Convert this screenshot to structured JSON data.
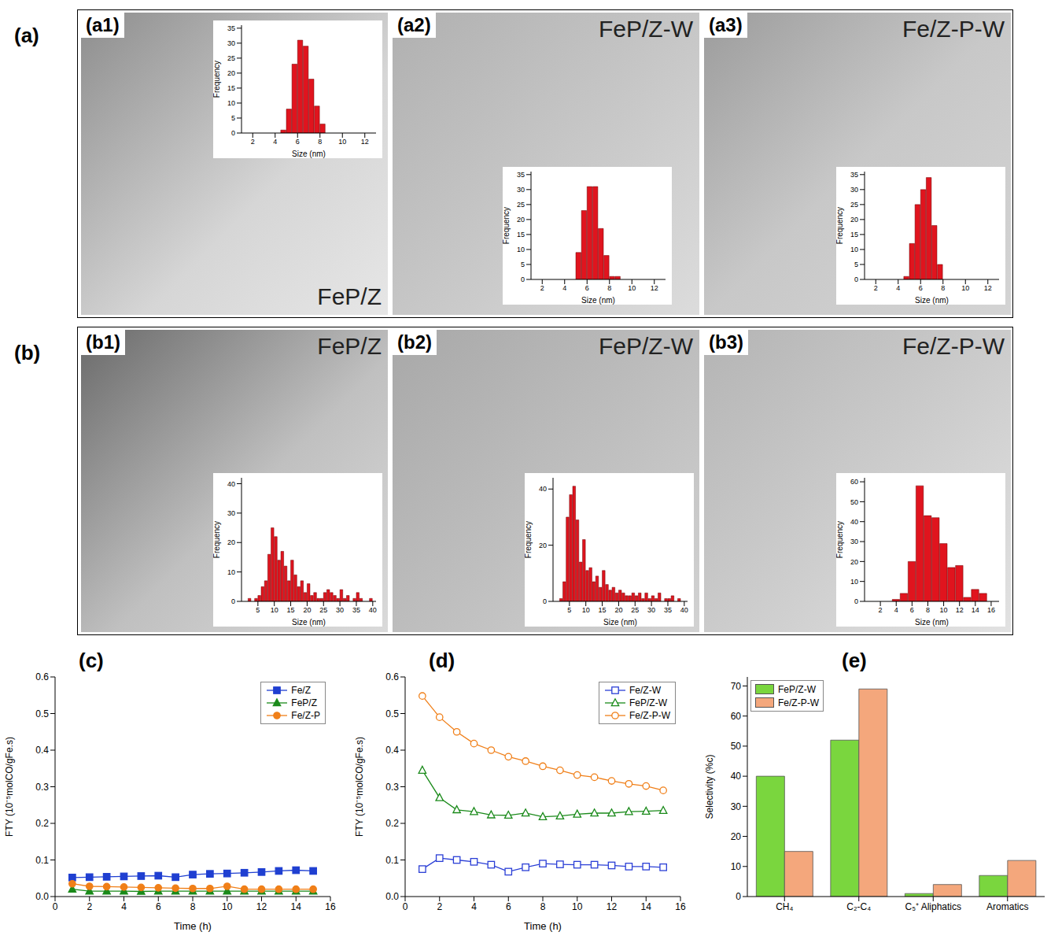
{
  "groups": [
    "(a)",
    "(b)"
  ],
  "chart_data": [
    {
      "type": "histogram",
      "title": "FeP/Z",
      "annotations": [
        "(a1)"
      ],
      "xlabel": "Size (nm)",
      "ylabel": "Frequency",
      "bins": [
        4.5,
        5,
        5.5,
        6,
        6.5,
        7,
        7.5,
        8,
        8.5
      ],
      "values": [
        1,
        8,
        23,
        31,
        29,
        18,
        9,
        3
      ],
      "color": "#e0141e",
      "xlim": [
        1,
        13
      ],
      "xticks": [
        2,
        4,
        6,
        8,
        10,
        12
      ],
      "ylim": [
        0,
        36
      ],
      "yticks": [
        0,
        5,
        10,
        15,
        20,
        25,
        30,
        35
      ]
    },
    {
      "type": "histogram",
      "title": "FeP/Z-W",
      "annotations": [
        "(a2)"
      ],
      "xlabel": "Size (nm)",
      "ylabel": "Frequency",
      "bins": [
        5,
        5.5,
        6,
        6.5,
        7,
        7.5,
        8,
        8.5,
        9
      ],
      "values": [
        9,
        23,
        31,
        31,
        17,
        8,
        1,
        1
      ],
      "color": "#e0141e",
      "xlim": [
        1,
        13
      ],
      "xticks": [
        2,
        4,
        6,
        8,
        10,
        12
      ],
      "ylim": [
        0,
        36
      ],
      "yticks": [
        0,
        5,
        10,
        15,
        20,
        25,
        30,
        35
      ]
    },
    {
      "type": "histogram",
      "title": "Fe/Z-P-W",
      "annotations": [
        "(a3)"
      ],
      "xlabel": "Size (nm)",
      "ylabel": "Frequency",
      "bins": [
        4.5,
        5,
        5.5,
        6,
        6.5,
        7,
        7.5,
        8
      ],
      "values": [
        1,
        12,
        25,
        30,
        34,
        18,
        5
      ],
      "color": "#e0141e",
      "xlim": [
        1,
        13
      ],
      "xticks": [
        2,
        4,
        6,
        8,
        10,
        12
      ],
      "ylim": [
        0,
        36
      ],
      "yticks": [
        0,
        5,
        10,
        15,
        20,
        25,
        30,
        35
      ]
    },
    {
      "type": "histogram",
      "title": "FeP/Z",
      "annotations": [
        "(b1)"
      ],
      "xlabel": "Size (nm)",
      "ylabel": "Frequency",
      "bins": [
        2,
        3,
        4,
        5,
        6,
        7,
        8,
        9,
        10,
        11,
        12,
        13,
        14,
        15,
        16,
        17,
        18,
        19,
        20,
        21,
        22,
        23,
        24,
        25,
        26,
        27,
        28,
        29,
        30,
        31,
        32,
        33,
        34,
        35,
        36,
        37,
        38,
        39,
        40,
        41
      ],
      "values": [
        1,
        0,
        1,
        2,
        5,
        7,
        16,
        25,
        22,
        14,
        17,
        12,
        7,
        14,
        9,
        5,
        7,
        3,
        6,
        2,
        3,
        1,
        1,
        3,
        4,
        3,
        2,
        1,
        4,
        1,
        2,
        0,
        1,
        3,
        1,
        0,
        0,
        1,
        0
      ],
      "color": "#e0141e",
      "xlim": [
        0,
        41
      ],
      "xticks": [
        5,
        10,
        15,
        20,
        25,
        30,
        35,
        40
      ],
      "ylim": [
        0,
        42
      ],
      "yticks": [
        0,
        10,
        20,
        30,
        40
      ]
    },
    {
      "type": "histogram",
      "title": "FeP/Z-W",
      "annotations": [
        "(b2)"
      ],
      "xlabel": "Size (nm)",
      "ylabel": "Frequency",
      "bins": [
        2,
        3,
        4,
        5,
        6,
        7,
        8,
        9,
        10,
        11,
        12,
        13,
        14,
        15,
        16,
        17,
        18,
        19,
        20,
        21,
        22,
        23,
        24,
        25,
        26,
        27,
        28,
        29,
        30,
        31,
        32,
        33,
        34,
        35,
        36,
        37,
        38,
        39,
        40
      ],
      "values": [
        1,
        7,
        30,
        38,
        41,
        29,
        14,
        22,
        11,
        12,
        7,
        9,
        5,
        11,
        6,
        4,
        5,
        3,
        4,
        3,
        2,
        2,
        3,
        2,
        3,
        1,
        3,
        1,
        2,
        1,
        3,
        0,
        1,
        1,
        2,
        0,
        1,
        0
      ],
      "color": "#e0141e",
      "xlim": [
        0,
        41
      ],
      "xticks": [
        5,
        10,
        15,
        20,
        25,
        30,
        35,
        40
      ],
      "ylim": [
        0,
        44
      ],
      "yticks": [
        0,
        20,
        40
      ]
    },
    {
      "type": "histogram",
      "title": "Fe/Z-P-W",
      "annotations": [
        "(b3)"
      ],
      "xlabel": "Size (nm)",
      "ylabel": "Frequency",
      "bins": [
        3.5,
        4.5,
        5.5,
        6.5,
        7.5,
        8.5,
        9.5,
        10.5,
        11.5,
        12.5,
        13.5,
        14.5,
        15.5
      ],
      "values": [
        1,
        4,
        20,
        58,
        43,
        42,
        29,
        17,
        18,
        2,
        6,
        4
      ],
      "color": "#e0141e",
      "xlim": [
        0,
        17
      ],
      "xticks": [
        2,
        4,
        6,
        8,
        10,
        12,
        14,
        16
      ],
      "ylim": [
        0,
        62
      ],
      "yticks": [
        0,
        10,
        20,
        30,
        40,
        50,
        60
      ]
    },
    {
      "type": "line",
      "annotations": [
        "(c)"
      ],
      "xlabel": "Time (h)",
      "ylabel": "FTY (10⁻⁵molCO/gFe.s)",
      "x": [
        1,
        2,
        3,
        4,
        5,
        6,
        7,
        8,
        9,
        10,
        11,
        12,
        13,
        14,
        15
      ],
      "series": [
        {
          "name": "Fe/Z",
          "color": "#1f3fd1",
          "marker": "square",
          "values": [
            0.052,
            0.053,
            0.054,
            0.055,
            0.056,
            0.057,
            0.053,
            0.06,
            0.062,
            0.063,
            0.065,
            0.067,
            0.07,
            0.072,
            0.07
          ]
        },
        {
          "name": "FeP/Z",
          "color": "#1a8a1a",
          "marker": "triangle",
          "values": [
            0.02,
            0.015,
            0.015,
            0.015,
            0.014,
            0.015,
            0.015,
            0.015,
            0.015,
            0.015,
            0.015,
            0.015,
            0.015,
            0.015,
            0.015
          ]
        },
        {
          "name": "Fe/Z-P",
          "color": "#f07f18",
          "marker": "circle",
          "values": [
            0.035,
            0.028,
            0.027,
            0.026,
            0.025,
            0.024,
            0.023,
            0.022,
            0.022,
            0.028,
            0.02,
            0.02,
            0.02,
            0.02,
            0.02
          ]
        }
      ],
      "xlim": [
        0,
        16
      ],
      "xticks": [
        0,
        2,
        4,
        6,
        8,
        10,
        12,
        14,
        16
      ],
      "ylim": [
        0,
        0.6
      ],
      "yticks": [
        {
          "value": 0,
          "label": "0.0"
        },
        0.1,
        0.2,
        0.3,
        0.4,
        0.5,
        0.6
      ],
      "legend": "upper right"
    },
    {
      "type": "line",
      "annotations": [
        "(d)"
      ],
      "xlabel": "Time (h)",
      "ylabel": "FTY (10⁻⁵molCO/gFe.s)",
      "x": [
        1,
        2,
        3,
        4,
        5,
        6,
        7,
        8,
        9,
        10,
        11,
        12,
        13,
        14,
        15
      ],
      "series": [
        {
          "name": "Fe/Z-W",
          "color": "#2b3fd6",
          "marker": "open-square",
          "values": [
            0.075,
            0.105,
            0.1,
            0.095,
            0.087,
            0.068,
            0.08,
            0.09,
            0.088,
            0.087,
            0.087,
            0.085,
            0.082,
            0.082,
            0.08
          ]
        },
        {
          "name": "FeP/Z-W",
          "color": "#1a8a1a",
          "marker": "open-triangle",
          "values": [
            0.345,
            0.27,
            0.237,
            0.232,
            0.223,
            0.222,
            0.228,
            0.218,
            0.22,
            0.225,
            0.228,
            0.228,
            0.232,
            0.233,
            0.235
          ]
        },
        {
          "name": "Fe/Z-P-W",
          "color": "#f07f18",
          "marker": "open-circle",
          "values": [
            0.548,
            0.49,
            0.45,
            0.418,
            0.4,
            0.382,
            0.37,
            0.356,
            0.345,
            0.332,
            0.326,
            0.316,
            0.308,
            0.302,
            0.29
          ]
        }
      ],
      "xlim": [
        0,
        16
      ],
      "xticks": [
        0,
        2,
        4,
        6,
        8,
        10,
        12,
        14,
        16
      ],
      "ylim": [
        0,
        0.6
      ],
      "yticks": [
        {
          "value": 0,
          "label": "0.0"
        },
        0.1,
        0.2,
        0.3,
        0.4,
        0.5,
        0.6
      ],
      "legend": "upper right"
    },
    {
      "type": "bar",
      "annotations": [
        "(e)"
      ],
      "ylabel": "Selectivity (%c)",
      "categories": [
        "CH₄",
        "C₂-C₄",
        "C₅⁺ Aliphatics",
        "Aromatics"
      ],
      "series": [
        {
          "name": "FeP/Z-W",
          "color": "#7ad63e",
          "values": [
            40,
            52,
            1,
            7
          ]
        },
        {
          "name": "Fe/Z-P-W",
          "color": "#f4a77c",
          "values": [
            15,
            69,
            4,
            12
          ]
        }
      ],
      "ylim": [
        0,
        73
      ],
      "yticks": [
        0,
        10,
        20,
        30,
        40,
        50,
        60,
        70
      ],
      "legend": "upper left"
    }
  ]
}
